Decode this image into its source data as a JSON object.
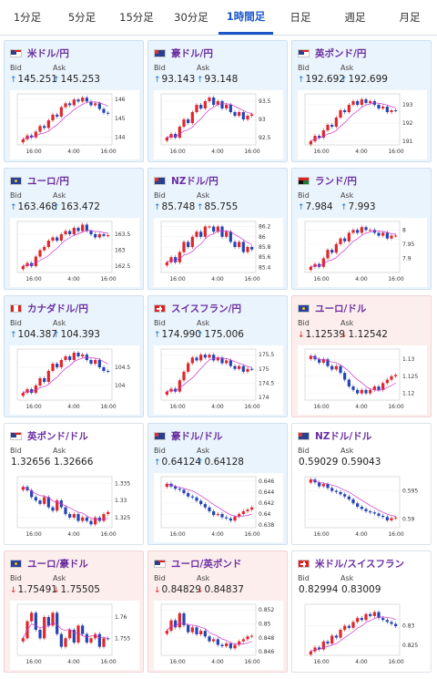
{
  "tabs": [
    {
      "label": "1分足",
      "active": false
    },
    {
      "label": "5分足",
      "active": false
    },
    {
      "label": "15分足",
      "active": false
    },
    {
      "label": "30分足",
      "active": false
    },
    {
      "label": "1時間足",
      "active": true
    },
    {
      "label": "日足",
      "active": false
    },
    {
      "label": "週足",
      "active": false
    },
    {
      "label": "月足",
      "active": false
    }
  ],
  "labels": {
    "bid": "Bid",
    "ask": "Ask"
  },
  "colors": {
    "up_arrow": "#1a73c9",
    "down_arrow": "#d22222",
    "candle_up": "#e0262a",
    "candle_down": "#2444b4",
    "ma": "#cc33cc",
    "pair": "#6a2ea0"
  },
  "cards": [
    {
      "pair": "米ドル/円",
      "flag": "us",
      "trend": "up",
      "bid": "145.251",
      "ask": "145.253",
      "arrow_bid": "↑",
      "arrow_ask": "↑"
    },
    {
      "pair": "豪ドル/円",
      "flag": "au",
      "trend": "up",
      "bid": "93.143",
      "ask": "93.148",
      "arrow_bid": "↑",
      "arrow_ask": "↑"
    },
    {
      "pair": "英ポンド/円",
      "flag": "gb",
      "trend": "up",
      "bid": "192.692",
      "ask": "192.699",
      "arrow_bid": "↑",
      "arrow_ask": "↑"
    },
    {
      "pair": "ユーロ/円",
      "flag": "eu",
      "trend": "up",
      "bid": "163.468",
      "ask": "163.472",
      "arrow_bid": "↑",
      "arrow_ask": "↑"
    },
    {
      "pair": "NZドル/円",
      "flag": "nz",
      "trend": "up",
      "bid": "85.748",
      "ask": "85.755",
      "arrow_bid": "↑",
      "arrow_ask": "↑"
    },
    {
      "pair": "ランド/円",
      "flag": "za",
      "trend": "up",
      "bid": "7.984",
      "ask": "7.993",
      "arrow_bid": "↑",
      "arrow_ask": "↑"
    },
    {
      "pair": "カナダドル/円",
      "flag": "ca",
      "trend": "up",
      "bid": "104.387",
      "ask": "104.393",
      "arrow_bid": "↑",
      "arrow_ask": "↑"
    },
    {
      "pair": "スイスフラン/円",
      "flag": "ch",
      "trend": "up",
      "bid": "174.990",
      "ask": "175.006",
      "arrow_bid": "↑",
      "arrow_ask": "↑"
    },
    {
      "pair": "ユーロ/ドル",
      "flag": "eu",
      "trend": "down",
      "bid": "1.12539",
      "ask": "1.12542",
      "arrow_bid": "↓",
      "arrow_ask": "↓"
    },
    {
      "pair": "英ポンド/ドル",
      "flag": "gb",
      "trend": "flat",
      "bid": "1.32656",
      "ask": "1.32666",
      "arrow_bid": "",
      "arrow_ask": ""
    },
    {
      "pair": "豪ドル/ドル",
      "flag": "au",
      "trend": "up",
      "bid": "0.64124",
      "ask": "0.64128",
      "arrow_bid": "↑",
      "arrow_ask": "↑"
    },
    {
      "pair": "NZドル/ドル",
      "flag": "nz",
      "trend": "flat",
      "bid": "0.59029",
      "ask": "0.59043",
      "arrow_bid": "",
      "arrow_ask": ""
    },
    {
      "pair": "ユーロ/豪ドル",
      "flag": "eu",
      "trend": "down",
      "bid": "1.75491",
      "ask": "1.75505",
      "arrow_bid": "↓",
      "arrow_ask": "↓"
    },
    {
      "pair": "ユーロ/英ポンド",
      "flag": "gb",
      "trend": "down",
      "bid": "0.84829",
      "ask": "0.84837",
      "arrow_bid": "↓",
      "arrow_ask": "↓"
    },
    {
      "pair": "米ドル/スイスフラン",
      "flag": "ch",
      "trend": "flat",
      "bid": "0.82994",
      "ask": "0.83009",
      "arrow_bid": "",
      "arrow_ask": ""
    }
  ],
  "chart_data": [
    {
      "type": "candlestick",
      "pair": "米ドル/円",
      "x_ticks": [
        "16:00",
        "4:00",
        "16:00"
      ],
      "y_ticks": [
        144,
        145,
        146
      ],
      "ylim": [
        143.6,
        146.3
      ],
      "close": [
        143.9,
        144.1,
        144.0,
        144.3,
        144.6,
        144.5,
        144.9,
        145.2,
        145.1,
        145.6,
        145.8,
        145.7,
        146.0,
        145.9,
        146.1,
        145.9,
        145.7,
        145.8,
        145.5,
        145.3,
        145.25
      ]
    },
    {
      "type": "candlestick",
      "pair": "豪ドル/円",
      "x_ticks": [
        "16:00",
        "4:00",
        "16:00"
      ],
      "y_ticks": [
        92.5,
        93,
        93.5
      ],
      "ylim": [
        92.3,
        93.7
      ],
      "close": [
        92.5,
        92.6,
        92.5,
        92.8,
        93.0,
        92.9,
        93.2,
        93.4,
        93.3,
        93.5,
        93.6,
        93.4,
        93.5,
        93.3,
        93.4,
        93.2,
        93.1,
        93.2,
        93.0,
        93.1,
        93.14
      ]
    },
    {
      "type": "candlestick",
      "pair": "英ポンド/円",
      "x_ticks": [
        "16:00",
        "4:00",
        "16:00"
      ],
      "y_ticks": [
        191,
        192,
        193
      ],
      "ylim": [
        190.8,
        193.6
      ],
      "close": [
        191.0,
        191.3,
        191.2,
        191.6,
        191.9,
        191.8,
        192.3,
        192.7,
        192.6,
        193.0,
        193.2,
        193.0,
        193.3,
        193.1,
        193.2,
        193.0,
        192.8,
        192.9,
        192.6,
        192.7,
        192.69
      ]
    },
    {
      "type": "candlestick",
      "pair": "ユーロ/円",
      "x_ticks": [
        "16:00",
        "4:00",
        "16:00"
      ],
      "y_ticks": [
        162.5,
        163,
        163.5
      ],
      "ylim": [
        162.3,
        163.9
      ],
      "close": [
        162.5,
        162.6,
        162.5,
        162.8,
        163.0,
        163.1,
        163.3,
        163.4,
        163.3,
        163.5,
        163.6,
        163.5,
        163.7,
        163.6,
        163.8,
        163.6,
        163.5,
        163.4,
        163.5,
        163.45,
        163.47
      ]
    },
    {
      "type": "candlestick",
      "pair": "NZドル/円",
      "x_ticks": [
        "16:00",
        "4:00",
        "16:00"
      ],
      "y_ticks": [
        85.4,
        85.6,
        85.8,
        86,
        86.2
      ],
      "ylim": [
        85.3,
        86.3
      ],
      "close": [
        85.5,
        85.6,
        85.5,
        85.7,
        85.9,
        85.8,
        86.0,
        86.1,
        86.0,
        86.2,
        86.2,
        86.1,
        86.2,
        86.0,
        86.1,
        85.9,
        85.8,
        85.9,
        85.7,
        85.8,
        85.75
      ]
    },
    {
      "type": "candlestick",
      "pair": "ランド/円",
      "x_ticks": [
        "16:00",
        "4:00",
        "16:00"
      ],
      "y_ticks": [
        7.9,
        7.95,
        8
      ],
      "ylim": [
        7.85,
        8.03
      ],
      "close": [
        7.87,
        7.88,
        7.87,
        7.9,
        7.93,
        7.92,
        7.95,
        7.97,
        7.96,
        7.99,
        8.0,
        7.99,
        8.01,
        8.0,
        8.0,
        7.99,
        7.98,
        7.99,
        7.97,
        7.98,
        7.98
      ]
    },
    {
      "type": "candlestick",
      "pair": "カナダドル/円",
      "x_ticks": [
        "16:00",
        "4:00",
        "16:00"
      ],
      "y_ticks": [
        104,
        104.5
      ],
      "ylim": [
        103.6,
        105.0
      ],
      "close": [
        103.8,
        103.9,
        103.8,
        104.0,
        104.2,
        104.1,
        104.4,
        104.6,
        104.5,
        104.7,
        104.8,
        104.7,
        104.9,
        104.8,
        104.85,
        104.7,
        104.6,
        104.7,
        104.5,
        104.4,
        104.39
      ]
    },
    {
      "type": "candlestick",
      "pair": "スイスフラン/円",
      "x_ticks": [
        "16:00",
        "4:00",
        "16:00"
      ],
      "y_ticks": [
        174,
        174.5,
        175,
        175.5
      ],
      "ylim": [
        173.9,
        175.7
      ],
      "close": [
        174.2,
        174.3,
        174.2,
        174.6,
        174.9,
        175.2,
        175.4,
        175.3,
        175.5,
        175.4,
        175.5,
        175.3,
        175.4,
        175.2,
        175.3,
        175.1,
        175.0,
        175.1,
        174.9,
        175.0,
        174.99
      ]
    },
    {
      "type": "candlestick",
      "pair": "ユーロ/ドル",
      "x_ticks": [
        "16:00",
        "4:00",
        "16:00"
      ],
      "y_ticks": [
        1.12,
        1.125,
        1.13
      ],
      "ylim": [
        1.118,
        1.133
      ],
      "close": [
        1.131,
        1.13,
        1.129,
        1.13,
        1.128,
        1.127,
        1.128,
        1.126,
        1.124,
        1.122,
        1.121,
        1.12,
        1.121,
        1.12,
        1.121,
        1.122,
        1.121,
        1.123,
        1.124,
        1.125,
        1.1254
      ]
    },
    {
      "type": "candlestick",
      "pair": "英ポンド/ドル",
      "x_ticks": [
        "16:00",
        "4:00",
        "16:00"
      ],
      "y_ticks": [
        1.325,
        1.33,
        1.335
      ],
      "ylim": [
        1.322,
        1.337
      ],
      "close": [
        1.334,
        1.333,
        1.331,
        1.33,
        1.329,
        1.331,
        1.328,
        1.327,
        1.33,
        1.328,
        1.326,
        1.325,
        1.326,
        1.324,
        1.325,
        1.324,
        1.323,
        1.325,
        1.324,
        1.326,
        1.3266
      ]
    },
    {
      "type": "candlestick",
      "pair": "豪ドル/ドル",
      "x_ticks": [
        "16:00",
        "4:00",
        "16:00"
      ],
      "y_ticks": [
        0.638,
        0.64,
        0.642,
        0.644,
        0.646
      ],
      "ylim": [
        0.6375,
        0.6468
      ],
      "close": [
        0.6455,
        0.645,
        0.6446,
        0.6444,
        0.6438,
        0.6432,
        0.643,
        0.6424,
        0.6418,
        0.6412,
        0.6405,
        0.6398,
        0.64,
        0.6394,
        0.6392,
        0.6388,
        0.6395,
        0.64,
        0.6405,
        0.6408,
        0.6412
      ]
    },
    {
      "type": "candlestick",
      "pair": "NZドル/ドル",
      "x_ticks": [
        "16:00",
        "4:00",
        "16:00"
      ],
      "y_ticks": [
        0.59,
        0.595
      ],
      "ylim": [
        0.5885,
        0.5975
      ],
      "close": [
        0.597,
        0.5965,
        0.5958,
        0.5962,
        0.5955,
        0.595,
        0.5948,
        0.5944,
        0.594,
        0.5935,
        0.5928,
        0.5922,
        0.5918,
        0.5914,
        0.5912,
        0.591,
        0.5906,
        0.5904,
        0.5898,
        0.5902,
        0.5903
      ]
    },
    {
      "type": "candlestick",
      "pair": "ユーロ/豪ドル",
      "x_ticks": [
        "16:00",
        "4:00",
        "16:00"
      ],
      "y_ticks": [
        1.755,
        1.76
      ],
      "ylim": [
        1.751,
        1.763
      ],
      "close": [
        1.755,
        1.759,
        1.761,
        1.757,
        1.755,
        1.76,
        1.758,
        1.761,
        1.756,
        1.753,
        1.755,
        1.757,
        1.754,
        1.758,
        1.756,
        1.754,
        1.755,
        1.756,
        1.753,
        1.755,
        1.7549
      ]
    },
    {
      "type": "candlestick",
      "pair": "ユーロ/英ポンド",
      "x_ticks": [
        "16:00",
        "4:00",
        "16:00"
      ],
      "y_ticks": [
        0.846,
        0.848,
        0.85,
        0.852
      ],
      "ylim": [
        0.8455,
        0.8528
      ],
      "close": [
        0.849,
        0.8505,
        0.8495,
        0.8515,
        0.8498,
        0.8488,
        0.8495,
        0.8485,
        0.849,
        0.8482,
        0.8475,
        0.8478,
        0.847,
        0.8468,
        0.8472,
        0.8465,
        0.847,
        0.8475,
        0.8478,
        0.8482,
        0.8483
      ]
    },
    {
      "type": "candlestick",
      "pair": "米ドル/スイスフラン",
      "x_ticks": [
        "16:00",
        "4:00",
        "16:00"
      ],
      "y_ticks": [
        0.825,
        0.83
      ],
      "ylim": [
        0.8225,
        0.8355
      ],
      "close": [
        0.8235,
        0.8245,
        0.824,
        0.826,
        0.8255,
        0.8275,
        0.827,
        0.829,
        0.83,
        0.8295,
        0.831,
        0.832,
        0.8315,
        0.833,
        0.8325,
        0.8335,
        0.832,
        0.8315,
        0.831,
        0.8305,
        0.8299
      ]
    }
  ]
}
